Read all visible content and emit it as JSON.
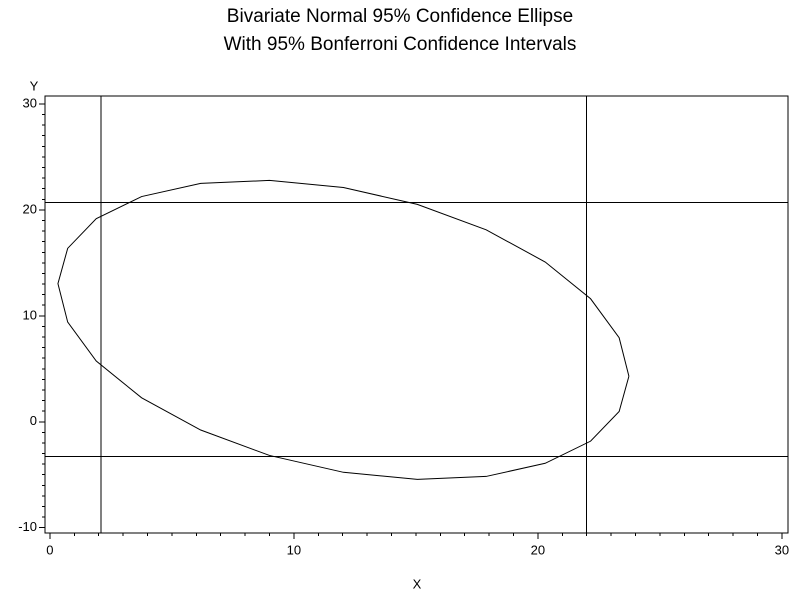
{
  "chart_data": {
    "type": "line",
    "title": "Bivariate Normal 95% Confidence Ellipse",
    "subtitle": "With 95% Bonferroni Confidence Intervals",
    "x_label": "X",
    "y_label": "Y",
    "xlim": [
      -0.2,
      30.25
    ],
    "ylim": [
      -10.5,
      30.75
    ],
    "xticks": [
      0,
      10,
      20,
      30
    ],
    "yticks": [
      -10,
      0,
      10,
      20,
      30
    ],
    "minor_tick_step": 1,
    "color": "#000000",
    "reference_lines": {
      "x": [
        2.1,
        22
      ],
      "y": [
        20.7,
        -3.3
      ]
    },
    "series": [
      {
        "x": [
          23.73,
          23.33,
          22.16,
          20.3,
          17.88,
          15.06,
          12.03,
          9.0,
          6.18,
          3.76,
          1.9,
          0.73,
          0.33,
          0.73,
          1.9,
          3.76,
          6.18,
          9.0,
          12.03,
          15.06,
          17.88,
          20.3,
          22.16,
          23.33,
          23.73
        ],
        "values": [
          4.3,
          7.93,
          11.61,
          15.08,
          18.12,
          20.52,
          22.11,
          22.78,
          22.5,
          21.26,
          19.17,
          16.37,
          13.04,
          9.41,
          5.73,
          2.26,
          -0.78,
          -3.18,
          -4.77,
          -5.44,
          -5.16,
          -3.92,
          -1.83,
          0.97,
          4.3
        ]
      }
    ]
  }
}
